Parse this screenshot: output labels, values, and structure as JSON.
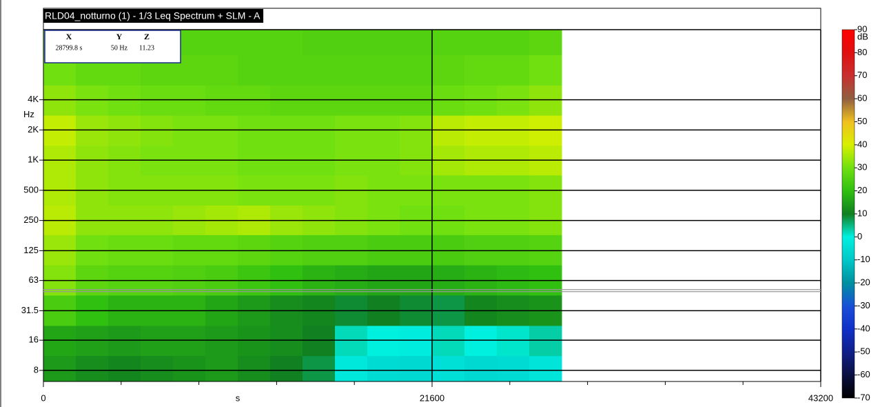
{
  "chart_data": {
    "type": "heatmap",
    "title": "RLD04_notturno (1) - 1/3 Leq Spectrum + SLM - A",
    "x_label": "s",
    "y_label": "Hz",
    "xlim": [
      0,
      43200
    ],
    "xticks": [
      0,
      21600,
      43200
    ],
    "ylim": [
      6.2,
      20000
    ],
    "log_y": true,
    "yticks": [
      8,
      16,
      31.5,
      63,
      125,
      250,
      500,
      {
        "value": 1000,
        "label": "1K"
      },
      {
        "value": 2000,
        "label": "2K"
      },
      {
        "value": 4000,
        "label": "4K"
      }
    ],
    "grid": true,
    "x_edges": [
      0,
      1800,
      3600,
      5400,
      7200,
      9000,
      10800,
      12600,
      14400,
      16200,
      18000,
      19800,
      21600,
      23400,
      25200,
      27000,
      28800
    ],
    "y_edges": [
      6.2,
      11.2,
      22.4,
      45,
      90,
      180,
      355,
      710,
      1400,
      2800,
      5600,
      11200,
      20000
    ],
    "z": [
      [
        14,
        12,
        11,
        12,
        13,
        14,
        12,
        10,
        8,
        -2,
        -5,
        -6,
        -4,
        -6,
        -5,
        -3
      ],
      [
        16,
        15,
        14,
        15,
        15,
        14,
        13,
        12,
        10,
        2,
        0,
        -1,
        2,
        0,
        1,
        3
      ],
      [
        24,
        20,
        18,
        18,
        18,
        16,
        14,
        12,
        11,
        9,
        10,
        9,
        8,
        11,
        12,
        13
      ],
      [
        32,
        27,
        26,
        26,
        25,
        24,
        22,
        20,
        18,
        17,
        16,
        16,
        17,
        18,
        19,
        20
      ],
      [
        34,
        30,
        29,
        29,
        28,
        28,
        27,
        26,
        25,
        25,
        24,
        24,
        24,
        25,
        25,
        26
      ],
      [
        37,
        33,
        33,
        33,
        34,
        35,
        36,
        34,
        33,
        32,
        31,
        30,
        30,
        31,
        31,
        32
      ],
      [
        36,
        33,
        32,
        32,
        32,
        32,
        31,
        31,
        31,
        32,
        31,
        31,
        31,
        31,
        31,
        32
      ],
      [
        36,
        33,
        32,
        31,
        31,
        31,
        30,
        30,
        30,
        31,
        31,
        32,
        35,
        36,
        36,
        37
      ],
      [
        38,
        34,
        33,
        32,
        31,
        31,
        30,
        30,
        30,
        31,
        31,
        32,
        37,
        38,
        38,
        39
      ],
      [
        33,
        31,
        30,
        29,
        29,
        28,
        28,
        27,
        27,
        27,
        27,
        27,
        29,
        30,
        31,
        33
      ],
      [
        30,
        28,
        28,
        27,
        27,
        27,
        26,
        26,
        26,
        26,
        26,
        26,
        27,
        28,
        28,
        30
      ],
      [
        27,
        26,
        26,
        26,
        26,
        26,
        26,
        26,
        25,
        25,
        25,
        25,
        26,
        26,
        26,
        27
      ]
    ],
    "colorbar": {
      "label": "dB",
      "ticks": [
        -70,
        -60,
        -50,
        -40,
        -30,
        -20,
        -10,
        0,
        10,
        20,
        30,
        40,
        50,
        60,
        70,
        80,
        90
      ],
      "colors": [
        "#000000",
        "#0a1040",
        "#10208a",
        "#1030c8",
        "#1850d8",
        "#0090a0",
        "#00c8c8",
        "#00f0e0",
        "#108020",
        "#30c010",
        "#70e010",
        "#d8f000",
        "#f0c020",
        "#906040",
        "#c83030",
        "#e01010",
        "#ff0000"
      ]
    },
    "cursor": {
      "headers": [
        "X",
        "Y",
        "Z"
      ],
      "x": {
        "value": 28799.8,
        "label": "28799.8 s"
      },
      "y": {
        "value": 50,
        "label": "50 Hz"
      },
      "z": 11.23
    }
  }
}
